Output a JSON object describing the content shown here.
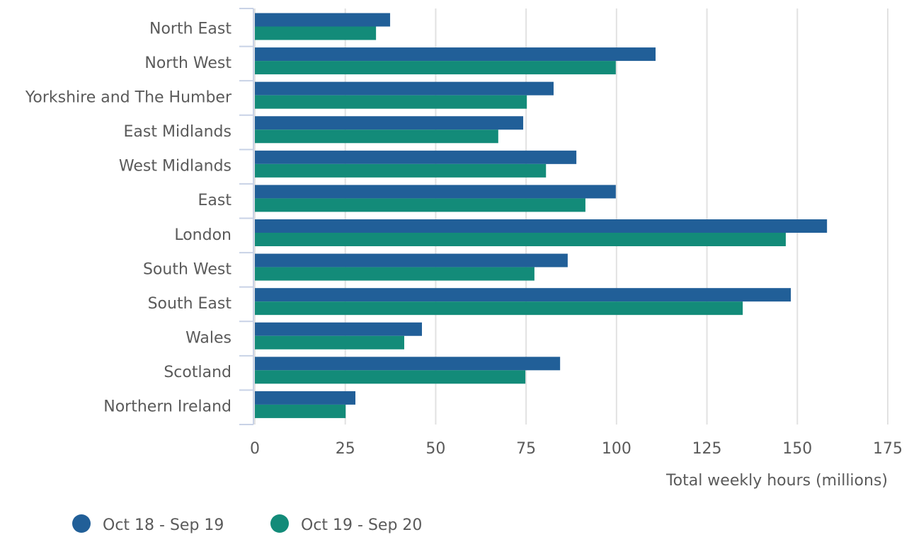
{
  "chart_data": {
    "type": "bar",
    "orientation": "horizontal",
    "categories": [
      "North East",
      "North West",
      "Yorkshire and The Humber",
      "East Midlands",
      "West Midlands",
      "East",
      "London",
      "South West",
      "South East",
      "Wales",
      "Scotland",
      "Northern Ireland"
    ],
    "series": [
      {
        "name": "Oct 18 - Sep 19",
        "color": "#215f98",
        "values": [
          37.4,
          110.8,
          82.6,
          74.2,
          88.9,
          99.8,
          158.2,
          86.5,
          148.2,
          46.2,
          84.4,
          27.8
        ]
      },
      {
        "name": "Oct 19 - Sep 20",
        "color": "#138b79",
        "values": [
          33.5,
          99.8,
          75.2,
          67.3,
          80.5,
          91.4,
          146.8,
          77.3,
          134.9,
          41.3,
          74.8,
          25.1
        ]
      }
    ],
    "xlabel": "Total weekly hours (millions)",
    "xlim": [
      0,
      175
    ],
    "xticks": [
      0,
      25,
      50,
      75,
      100,
      125,
      150,
      175
    ],
    "grid": true,
    "legend": "bottom-left"
  }
}
